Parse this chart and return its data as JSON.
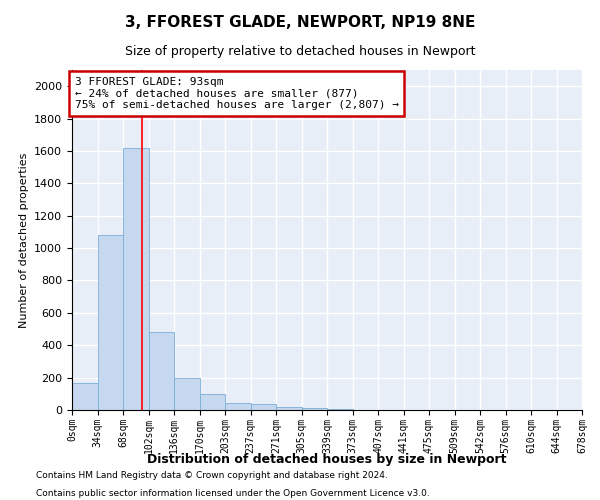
{
  "title": "3, FFOREST GLADE, NEWPORT, NP19 8NE",
  "subtitle": "Size of property relative to detached houses in Newport",
  "xlabel": "Distribution of detached houses by size in Newport",
  "ylabel": "Number of detached properties",
  "bar_color": "#c5d8f0",
  "bar_edge_color": "#7aaed6",
  "background_color": "#e8eef8",
  "grid_color": "#ffffff",
  "bin_labels": [
    "0sqm",
    "34sqm",
    "68sqm",
    "102sqm",
    "136sqm",
    "170sqm",
    "203sqm",
    "237sqm",
    "271sqm",
    "305sqm",
    "339sqm",
    "373sqm",
    "407sqm",
    "441sqm",
    "475sqm",
    "509sqm",
    "542sqm",
    "576sqm",
    "610sqm",
    "644sqm",
    "678sqm"
  ],
  "bar_values": [
    165,
    1080,
    1620,
    480,
    200,
    100,
    45,
    35,
    20,
    15,
    5,
    3,
    2,
    1,
    0,
    0,
    0,
    0,
    0,
    0
  ],
  "red_line_x": 2.73,
  "annotation_line1": "3 FFOREST GLADE: 93sqm",
  "annotation_line2": "← 24% of detached houses are smaller (877)",
  "annotation_line3": "75% of semi-detached houses are larger (2,807) →",
  "annotation_box_color": "#cc0000",
  "ylim": [
    0,
    2100
  ],
  "yticks": [
    0,
    200,
    400,
    600,
    800,
    1000,
    1200,
    1400,
    1600,
    1800,
    2000
  ],
  "footnote1": "Contains HM Land Registry data © Crown copyright and database right 2024.",
  "footnote2": "Contains public sector information licensed under the Open Government Licence v3.0."
}
